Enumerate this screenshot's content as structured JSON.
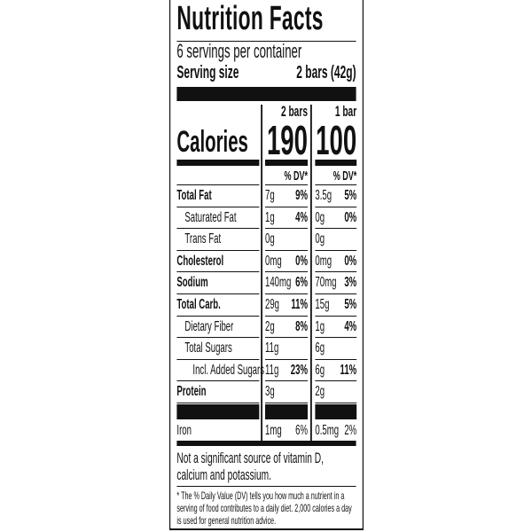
{
  "title": "Nutrition Facts",
  "servings_per_container": "6 servings per container",
  "serving_size_label": "Serving size",
  "serving_size_value": "2 bars (42g)",
  "calories_label": "Calories",
  "columns": [
    {
      "header": "2 bars",
      "calories": "190",
      "dv_header": "% DV*"
    },
    {
      "header": "1 bar",
      "calories": "100",
      "dv_header": "% DV*"
    }
  ],
  "rows": [
    {
      "name": "Total Fat",
      "bold": true,
      "indent": 0,
      "values": [
        [
          "7g",
          "9%"
        ],
        [
          "3.5g",
          "5%"
        ]
      ]
    },
    {
      "name": "Saturated Fat",
      "bold": false,
      "indent": 1,
      "values": [
        [
          "1g",
          "4%"
        ],
        [
          "0g",
          "0%"
        ]
      ]
    },
    {
      "name": "Trans Fat",
      "bold": false,
      "indent": 1,
      "values": [
        [
          "0g",
          ""
        ],
        [
          "0g",
          ""
        ]
      ]
    },
    {
      "name": "Cholesterol",
      "bold": true,
      "indent": 0,
      "values": [
        [
          "0mg",
          "0%"
        ],
        [
          "0mg",
          "0%"
        ]
      ]
    },
    {
      "name": "Sodium",
      "bold": true,
      "indent": 0,
      "values": [
        [
          "140mg",
          "6%"
        ],
        [
          "70mg",
          "3%"
        ]
      ]
    },
    {
      "name": "Total Carb.",
      "bold": true,
      "indent": 0,
      "values": [
        [
          "29g",
          "11%"
        ],
        [
          "15g",
          "5%"
        ]
      ]
    },
    {
      "name": "Dietary Fiber",
      "bold": false,
      "indent": 1,
      "values": [
        [
          "2g",
          "8%"
        ],
        [
          "1g",
          "4%"
        ]
      ]
    },
    {
      "name": "Total Sugars",
      "bold": false,
      "indent": 1,
      "values": [
        [
          "11g",
          ""
        ],
        [
          "6g",
          ""
        ]
      ]
    },
    {
      "name": "Incl. Added Sugars",
      "bold": false,
      "indent": 2,
      "values": [
        [
          "11g",
          "23%"
        ],
        [
          "6g",
          "11%"
        ]
      ]
    },
    {
      "name": "Protein",
      "bold": true,
      "indent": 0,
      "values": [
        [
          "3g",
          ""
        ],
        [
          "2g",
          ""
        ]
      ]
    }
  ],
  "micros": [
    {
      "name": "Iron",
      "values": [
        [
          "1mg",
          "6%"
        ],
        [
          "0.5mg",
          "2%"
        ]
      ]
    }
  ],
  "note": "Not a significant source of vitamin D, calcium and potassium.",
  "footnote": "* The % Daily Value (DV) tells you how much a nutrient in a serving of food contributes to a daily diet. 2,000 calories a day is used for general nutrition advice."
}
